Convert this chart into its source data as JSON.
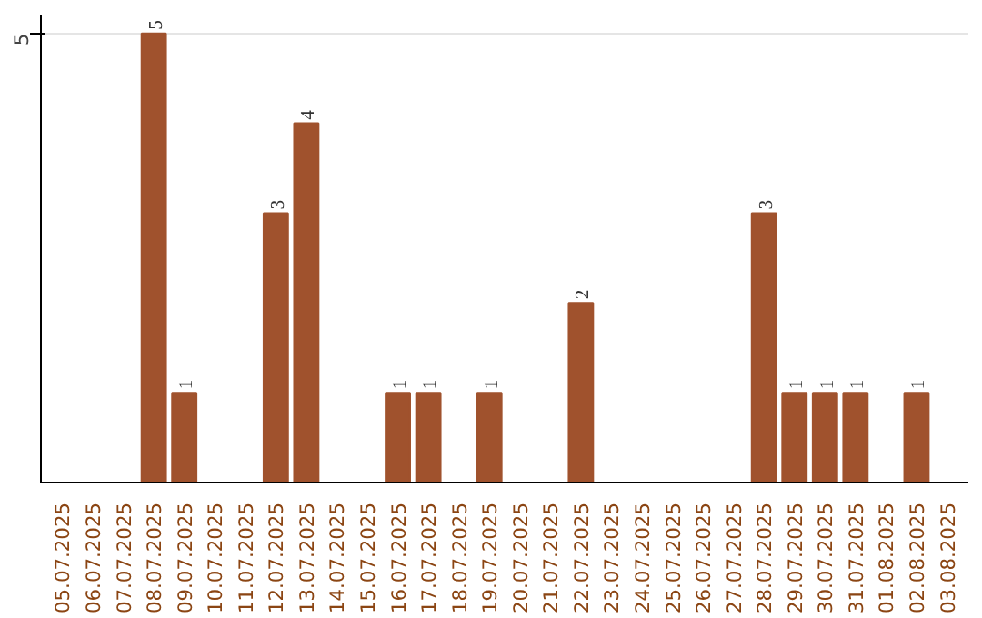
{
  "chart_data": {
    "type": "bar",
    "categories": [
      "05.07.2025",
      "06.07.2025",
      "07.07.2025",
      "08.07.2025",
      "09.07.2025",
      "10.07.2025",
      "11.07.2025",
      "12.07.2025",
      "13.07.2025",
      "14.07.2025",
      "15.07.2025",
      "16.07.2025",
      "17.07.2025",
      "18.07.2025",
      "19.07.2025",
      "20.07.2025",
      "21.07.2025",
      "22.07.2025",
      "23.07.2025",
      "24.07.2025",
      "25.07.2025",
      "26.07.2025",
      "27.07.2025",
      "28.07.2025",
      "29.07.2025",
      "30.07.2025",
      "31.07.2025",
      "01.08.2025",
      "02.08.2025",
      "03.08.2025"
    ],
    "values": [
      0,
      0,
      0,
      5,
      1,
      0,
      0,
      3,
      4,
      0,
      0,
      1,
      1,
      0,
      1,
      0,
      0,
      2,
      0,
      0,
      0,
      0,
      0,
      3,
      1,
      1,
      1,
      0,
      1,
      0
    ],
    "color": "#a0522d",
    "value_labels": [
      null,
      null,
      null,
      "5",
      "1",
      null,
      null,
      "3",
      "4",
      null,
      null,
      "1",
      "1",
      null,
      "1",
      null,
      null,
      "2",
      null,
      null,
      null,
      null,
      null,
      "3",
      "1",
      "1",
      "1",
      null,
      "1",
      null
    ],
    "ylim": [
      0,
      5.2
    ],
    "yticks": [
      5
    ],
    "grid": "y"
  }
}
